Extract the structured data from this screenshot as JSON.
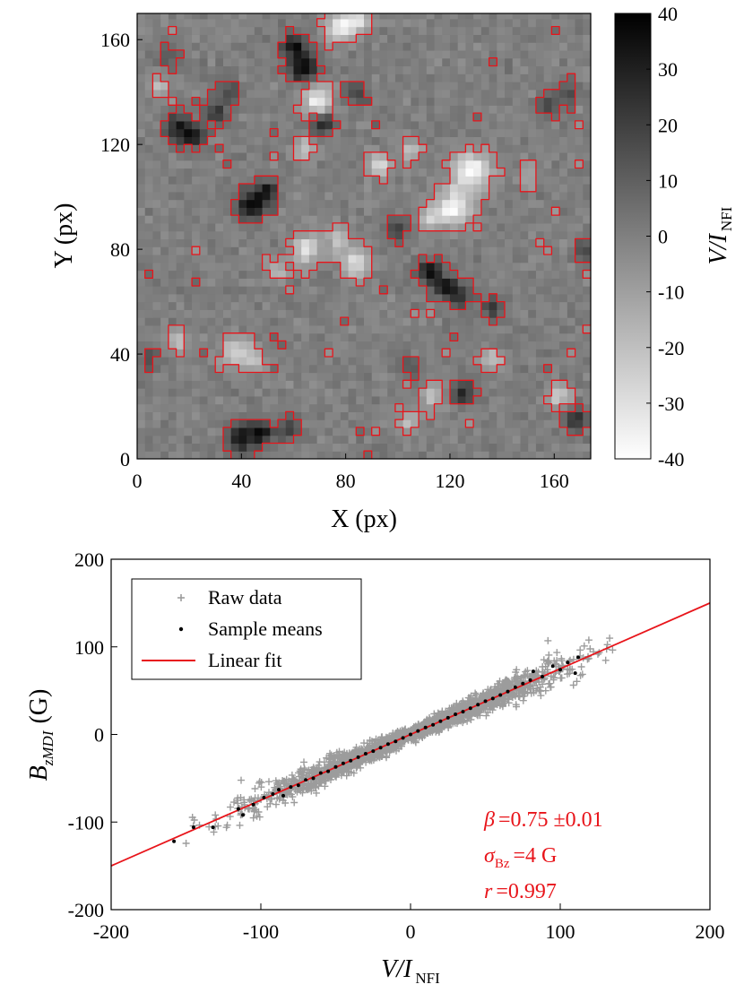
{
  "colors": {
    "contour": "#e8141a",
    "raw": "#9c9c9c",
    "means": "#000000",
    "fit": "#e8141a",
    "axis": "#000000"
  },
  "chart_data": [
    {
      "type": "heatmap",
      "title": "",
      "xlabel": "X (px)",
      "ylabel": "Y (px)",
      "xlim": [
        0,
        174
      ],
      "ylim": [
        0,
        170
      ],
      "x_ticks": [
        "0",
        "40",
        "80",
        "120",
        "160"
      ],
      "y_ticks": [
        "0",
        "40",
        "80",
        "120",
        "160"
      ],
      "colorbar": {
        "label_main": "V/I",
        "label_sub": "NFI",
        "range": [
          -40,
          40
        ],
        "ticks": [
          "40",
          "30",
          "20",
          "10",
          "0",
          "-10",
          "-20",
          "-30",
          "-40"
        ],
        "colormap": "gray, white = -40, black = 40"
      },
      "contour_color": "red",
      "features": [
        {
          "x": 64,
          "y": 150,
          "v": 38,
          "s": 4
        },
        {
          "x": 60,
          "y": 158,
          "v": 35,
          "s": 3
        },
        {
          "x": 71,
          "y": 128,
          "v": 30,
          "s": 3
        },
        {
          "x": 16,
          "y": 126,
          "v": 30,
          "s": 4
        },
        {
          "x": 22,
          "y": 123,
          "v": 25,
          "s": 3
        },
        {
          "x": 30,
          "y": 132,
          "v": 25,
          "s": 3
        },
        {
          "x": 44,
          "y": 97,
          "v": 38,
          "s": 4
        },
        {
          "x": 50,
          "y": 102,
          "v": 28,
          "s": 3
        },
        {
          "x": 35,
          "y": 140,
          "v": 18,
          "s": 3
        },
        {
          "x": 112,
          "y": 72,
          "v": 35,
          "s": 3
        },
        {
          "x": 118,
          "y": 66,
          "v": 35,
          "s": 3
        },
        {
          "x": 124,
          "y": 62,
          "v": 30,
          "s": 3
        },
        {
          "x": 136,
          "y": 58,
          "v": 22,
          "s": 3
        },
        {
          "x": 100,
          "y": 88,
          "v": 20,
          "s": 3
        },
        {
          "x": 84,
          "y": 140,
          "v": 20,
          "s": 3
        },
        {
          "x": 40,
          "y": 8,
          "v": 35,
          "s": 4
        },
        {
          "x": 48,
          "y": 10,
          "v": 30,
          "s": 3
        },
        {
          "x": 58,
          "y": 12,
          "v": 22,
          "s": 3
        },
        {
          "x": 125,
          "y": 25,
          "v": 28,
          "s": 3
        },
        {
          "x": 168,
          "y": 15,
          "v": 28,
          "s": 3
        },
        {
          "x": 172,
          "y": 80,
          "v": 20,
          "s": 3
        },
        {
          "x": 158,
          "y": 135,
          "v": 18,
          "s": 3
        },
        {
          "x": 166,
          "y": 140,
          "v": 15,
          "s": 3
        },
        {
          "x": 12,
          "y": 154,
          "v": 15,
          "s": 3
        },
        {
          "x": 5,
          "y": 38,
          "v": 15,
          "s": 3
        },
        {
          "x": 104,
          "y": 36,
          "v": 15,
          "s": 3
        },
        {
          "x": 69,
          "y": 137,
          "v": -35,
          "s": 4
        },
        {
          "x": 78,
          "y": 165,
          "v": -35,
          "s": 4
        },
        {
          "x": 85,
          "y": 168,
          "v": -30,
          "s": 3
        },
        {
          "x": 128,
          "y": 110,
          "v": -38,
          "s": 5
        },
        {
          "x": 121,
          "y": 96,
          "v": -38,
          "s": 5
        },
        {
          "x": 112,
          "y": 92,
          "v": -20,
          "s": 3
        },
        {
          "x": 84,
          "y": 75,
          "v": -30,
          "s": 4
        },
        {
          "x": 65,
          "y": 80,
          "v": -30,
          "s": 4
        },
        {
          "x": 77,
          "y": 84,
          "v": -25,
          "s": 3
        },
        {
          "x": 93,
          "y": 112,
          "v": -30,
          "s": 3
        },
        {
          "x": 105,
          "y": 118,
          "v": -20,
          "s": 3
        },
        {
          "x": 38,
          "y": 41,
          "v": -28,
          "s": 4
        },
        {
          "x": 45,
          "y": 38,
          "v": -20,
          "s": 3
        },
        {
          "x": 15,
          "y": 45,
          "v": -20,
          "s": 3
        },
        {
          "x": 113,
          "y": 24,
          "v": -25,
          "s": 3
        },
        {
          "x": 104,
          "y": 14,
          "v": -20,
          "s": 3
        },
        {
          "x": 162,
          "y": 24,
          "v": -25,
          "s": 3
        },
        {
          "x": 136,
          "y": 38,
          "v": -20,
          "s": 3
        },
        {
          "x": 8,
          "y": 142,
          "v": -18,
          "s": 3
        },
        {
          "x": 64,
          "y": 118,
          "v": -22,
          "s": 3
        },
        {
          "x": 150,
          "y": 108,
          "v": -15,
          "s": 3
        },
        {
          "x": 54,
          "y": 72,
          "v": -18,
          "s": 3
        }
      ]
    },
    {
      "type": "scatter",
      "title": "",
      "xlabel": "V/I",
      "xlabel_sub": "NFI",
      "ylabel": "B",
      "ylabel_sub": "zMDI",
      "ylabel_unit": "(G)",
      "xlim": [
        -200,
        200
      ],
      "ylim": [
        -200,
        200
      ],
      "x_ticks": [
        "-200",
        "-100",
        "0",
        "100",
        "200"
      ],
      "y_ticks": [
        "-200",
        "-100",
        "0",
        "100",
        "200"
      ],
      "legend": [
        "Raw data",
        "Sample means",
        "Linear fit"
      ],
      "legend_position": "top-left",
      "fit": {
        "slope": 0.75,
        "intercept": 0,
        "x_range": [
          -200,
          200
        ]
      },
      "annotations": {
        "beta_symbol": "β",
        "beta_value": "=0.75 ±0.01",
        "sigma_symbol": "σ",
        "sigma_sub": "Bz",
        "sigma_value": "=4 G",
        "r_symbol": "r",
        "r_value": "=0.997"
      },
      "raw_data_envelope": {
        "x_range": [
          -160,
          140
        ],
        "band_halfwidth_G": 10,
        "points": 2500
      },
      "sample_means": [
        {
          "x": -158,
          "y": -122
        },
        {
          "x": -145,
          "y": -106
        },
        {
          "x": -132,
          "y": -106
        },
        {
          "x": -115,
          "y": -85
        },
        {
          "x": -112,
          "y": -92
        },
        {
          "x": -105,
          "y": -80
        },
        {
          "x": -98,
          "y": -72
        },
        {
          "x": -92,
          "y": -68
        },
        {
          "x": -88,
          "y": -63
        },
        {
          "x": -85,
          "y": -70
        },
        {
          "x": -80,
          "y": -60
        },
        {
          "x": -75,
          "y": -58
        },
        {
          "x": -70,
          "y": -52
        },
        {
          "x": -65,
          "y": -50
        },
        {
          "x": -60,
          "y": -44
        },
        {
          "x": -55,
          "y": -42
        },
        {
          "x": -50,
          "y": -37
        },
        {
          "x": -45,
          "y": -33
        },
        {
          "x": -40,
          "y": -30
        },
        {
          "x": -35,
          "y": -26
        },
        {
          "x": -30,
          "y": -22
        },
        {
          "x": -25,
          "y": -19
        },
        {
          "x": -20,
          "y": -15
        },
        {
          "x": -15,
          "y": -11
        },
        {
          "x": -10,
          "y": -8
        },
        {
          "x": -5,
          "y": -4
        },
        {
          "x": 0,
          "y": 0
        },
        {
          "x": 5,
          "y": 4
        },
        {
          "x": 10,
          "y": 8
        },
        {
          "x": 15,
          "y": 11
        },
        {
          "x": 20,
          "y": 15
        },
        {
          "x": 25,
          "y": 19
        },
        {
          "x": 30,
          "y": 23
        },
        {
          "x": 35,
          "y": 26
        },
        {
          "x": 40,
          "y": 30
        },
        {
          "x": 45,
          "y": 34
        },
        {
          "x": 50,
          "y": 38
        },
        {
          "x": 55,
          "y": 41
        },
        {
          "x": 60,
          "y": 45
        },
        {
          "x": 65,
          "y": 49
        },
        {
          "x": 70,
          "y": 54
        },
        {
          "x": 75,
          "y": 58
        },
        {
          "x": 80,
          "y": 62
        },
        {
          "x": 82,
          "y": 72
        },
        {
          "x": 88,
          "y": 66
        },
        {
          "x": 95,
          "y": 78
        },
        {
          "x": 100,
          "y": 74
        },
        {
          "x": 105,
          "y": 82
        },
        {
          "x": 110,
          "y": 70
        },
        {
          "x": 112,
          "y": 88
        }
      ]
    }
  ]
}
